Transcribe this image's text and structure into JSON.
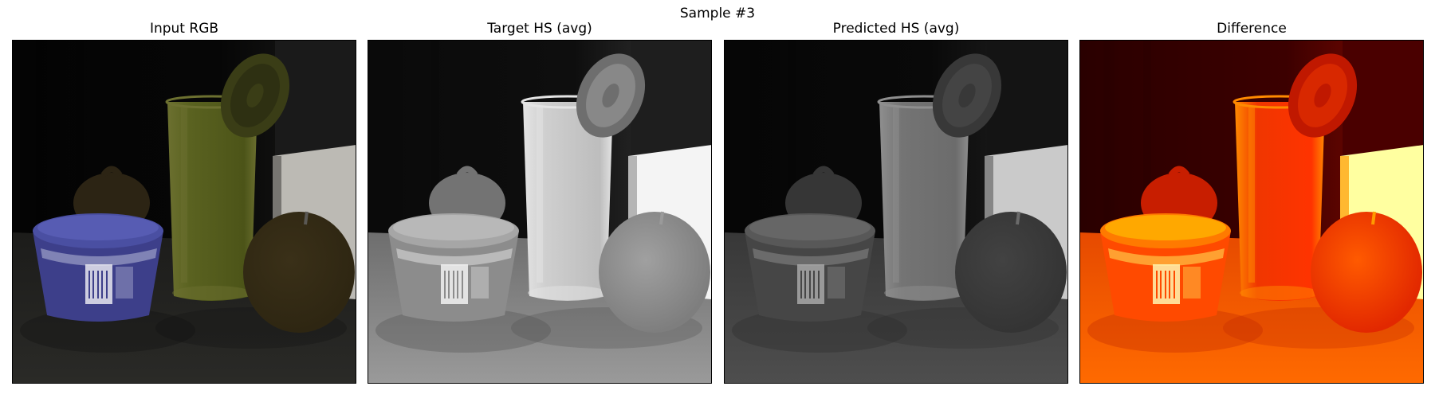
{
  "figure": {
    "title": "Sample #3",
    "panels": [
      {
        "title": "Input RGB",
        "style": "rgb"
      },
      {
        "title": "Target HS (avg)",
        "style": "gray-bright"
      },
      {
        "title": "Predicted HS (avg)",
        "style": "gray-dark"
      },
      {
        "title": "Difference",
        "style": "hot"
      }
    ]
  }
}
